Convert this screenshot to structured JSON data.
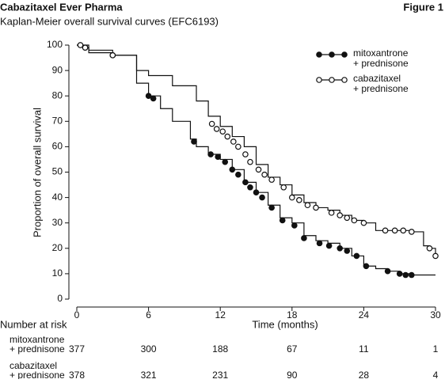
{
  "header": {
    "title": "Cabazitaxel Ever Pharma",
    "figure": "Figure 1"
  },
  "chart_data": {
    "type": "step",
    "subtitle": "Kaplan-Meier overall survival curves (EFC6193)",
    "x_label": "Time (months)",
    "y_label": "Proportion of overall survival",
    "xlim": [
      0,
      30
    ],
    "ylim": [
      0,
      100
    ],
    "xticks": [
      0,
      6,
      12,
      18,
      24,
      30
    ],
    "yticks": [
      0,
      10,
      20,
      30,
      40,
      50,
      60,
      70,
      80,
      90,
      100
    ],
    "series": [
      {
        "name_lines": [
          "mitoxantrone",
          "+ prednisone"
        ],
        "color": "#111111",
        "marker": "filled",
        "x": [
          0,
          0.5,
          1,
          3,
          5,
          6,
          7,
          8,
          9.5,
          10,
          11,
          12,
          13,
          14,
          15,
          16,
          17,
          18,
          19,
          20,
          21,
          22,
          23,
          24,
          25,
          26,
          27,
          28,
          30
        ],
        "values": [
          100,
          99,
          97,
          96,
          85,
          80,
          75,
          70,
          63,
          60,
          57,
          55,
          51,
          46,
          42,
          37,
          32,
          30,
          25,
          23,
          22,
          20,
          17,
          13,
          12,
          11,
          10,
          9.5,
          9.5
        ],
        "censor_x": [
          0.3,
          0.7,
          3,
          6,
          6.4,
          9.8,
          11.2,
          11.8,
          12.4,
          13,
          13.5,
          14.1,
          14.5,
          15,
          15.5,
          16.3,
          17.2,
          18.2,
          19,
          20.3,
          21.1,
          22,
          22.6,
          23.4,
          24.2,
          26,
          27,
          27.5,
          28
        ],
        "censor_values": [
          100,
          99,
          96,
          80,
          79,
          62,
          57,
          56,
          54,
          51,
          49,
          46,
          44,
          42,
          40,
          36,
          31,
          29,
          24,
          22,
          21,
          20,
          19,
          17,
          13,
          11,
          10,
          9.5,
          9.5
        ]
      },
      {
        "name_lines": [
          "cabazitaxel",
          "+ prednisone"
        ],
        "color": "#111111",
        "marker": "open",
        "x": [
          0,
          1,
          3,
          5,
          6,
          8,
          10,
          11,
          12,
          13,
          14,
          15,
          16,
          17,
          18,
          19,
          20,
          21,
          22,
          23,
          24,
          25,
          28,
          29,
          29.5,
          30
        ],
        "values": [
          100,
          98,
          96,
          90,
          88,
          84,
          78,
          72,
          68,
          64,
          60,
          53,
          48,
          45,
          41,
          38,
          36,
          35,
          33,
          31,
          30,
          27,
          26.5,
          21,
          20,
          17
        ],
        "censor_x": [
          0.3,
          0.7,
          3,
          11.3,
          11.7,
          12.2,
          12.6,
          13.1,
          13.5,
          14.1,
          14.5,
          15.2,
          15.7,
          16.3,
          17.3,
          18,
          18.6,
          19.3,
          20,
          21.3,
          22,
          22.6,
          23.2,
          24,
          25.8,
          26.6,
          27.3,
          28,
          29.5,
          30
        ],
        "censor_values": [
          100,
          99,
          96,
          69,
          67,
          66,
          64,
          62,
          60,
          57,
          54,
          51,
          49,
          47,
          44,
          40,
          39,
          37,
          36,
          34,
          33,
          32,
          31,
          30,
          27,
          27,
          27,
          26.5,
          20,
          17
        ]
      }
    ],
    "risk_table": {
      "title": "Number at risk",
      "times": [
        0,
        6,
        12,
        18,
        24,
        30
      ],
      "rows": [
        [
          377,
          300,
          188,
          67,
          11,
          1
        ],
        [
          378,
          321,
          231,
          90,
          28,
          4
        ]
      ]
    }
  }
}
